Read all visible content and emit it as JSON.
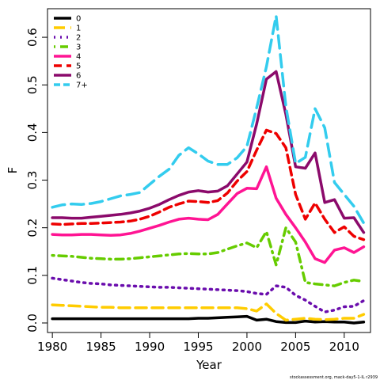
{
  "chart_data": {
    "type": "line",
    "title": "",
    "xlabel": "Year",
    "ylabel": "F",
    "xlim": [
      1979.5,
      2012.7
    ],
    "ylim": [
      -0.02,
      0.66
    ],
    "grid": false,
    "legend_position": "top-left",
    "x_ticks": [
      1980,
      1985,
      1990,
      1995,
      2000,
      2005,
      2010
    ],
    "y_ticks": [
      0.0,
      0.1,
      0.2,
      0.3,
      0.4,
      0.5,
      0.6
    ],
    "y_tick_labels": [
      "0.0",
      "0.1",
      "0.2",
      "0.3",
      "0.4",
      "0.5",
      "0.6"
    ],
    "x": [
      1980,
      1981,
      1982,
      1983,
      1984,
      1985,
      1986,
      1987,
      1988,
      1989,
      1990,
      1991,
      1992,
      1993,
      1994,
      1995,
      1996,
      1997,
      1998,
      1999,
      2000,
      2001,
      2002,
      2003,
      2004,
      2005,
      2006,
      2007,
      2008,
      2009,
      2010,
      2011,
      2012
    ],
    "series": [
      {
        "name": "0",
        "color": "#000000",
        "dash": "solid",
        "values": [
          0.009,
          0.009,
          0.009,
          0.009,
          0.009,
          0.009,
          0.009,
          0.009,
          0.009,
          0.009,
          0.009,
          0.009,
          0.009,
          0.009,
          0.009,
          0.01,
          0.01,
          0.011,
          0.012,
          0.013,
          0.014,
          0.006,
          0.008,
          0.003,
          0.001,
          0.001,
          0.004,
          0.002,
          0.003,
          0.002,
          0.002,
          0.0,
          0.002
        ]
      },
      {
        "name": "1",
        "color": "#FFCC00",
        "dash": "long",
        "values": [
          0.038,
          0.037,
          0.036,
          0.035,
          0.034,
          0.033,
          0.033,
          0.032,
          0.032,
          0.032,
          0.032,
          0.032,
          0.032,
          0.032,
          0.032,
          0.032,
          0.032,
          0.032,
          0.032,
          0.032,
          0.03,
          0.025,
          0.04,
          0.02,
          0.006,
          0.008,
          0.01,
          0.008,
          0.007,
          0.008,
          0.01,
          0.01,
          0.018
        ]
      },
      {
        "name": "2",
        "color": "#6A0DAD",
        "dash": "dotted",
        "values": [
          0.094,
          0.091,
          0.088,
          0.085,
          0.083,
          0.082,
          0.08,
          0.079,
          0.078,
          0.077,
          0.076,
          0.075,
          0.075,
          0.074,
          0.073,
          0.072,
          0.071,
          0.07,
          0.069,
          0.068,
          0.066,
          0.062,
          0.06,
          0.078,
          0.075,
          0.058,
          0.048,
          0.035,
          0.023,
          0.027,
          0.034,
          0.035,
          0.047
        ]
      },
      {
        "name": "3",
        "color": "#66CC00",
        "dash": "dotdash",
        "values": [
          0.142,
          0.141,
          0.14,
          0.138,
          0.136,
          0.135,
          0.134,
          0.134,
          0.135,
          0.137,
          0.139,
          0.141,
          0.143,
          0.145,
          0.146,
          0.145,
          0.145,
          0.148,
          0.155,
          0.162,
          0.168,
          0.158,
          0.192,
          0.122,
          0.2,
          0.17,
          0.085,
          0.082,
          0.08,
          0.078,
          0.085,
          0.09,
          0.087
        ]
      },
      {
        "name": "4",
        "color": "#FF1493",
        "dash": "solid",
        "values": [
          0.186,
          0.185,
          0.185,
          0.186,
          0.186,
          0.185,
          0.184,
          0.185,
          0.188,
          0.193,
          0.199,
          0.205,
          0.212,
          0.218,
          0.22,
          0.218,
          0.217,
          0.228,
          0.25,
          0.272,
          0.283,
          0.282,
          0.328,
          0.262,
          0.228,
          0.2,
          0.17,
          0.135,
          0.127,
          0.153,
          0.158,
          0.148,
          0.16
        ]
      },
      {
        "name": "5",
        "color": "#EE0000",
        "dash": "dashed",
        "values": [
          0.208,
          0.207,
          0.208,
          0.209,
          0.209,
          0.21,
          0.211,
          0.212,
          0.214,
          0.218,
          0.224,
          0.233,
          0.243,
          0.25,
          0.256,
          0.255,
          0.253,
          0.257,
          0.273,
          0.298,
          0.318,
          0.363,
          0.405,
          0.398,
          0.368,
          0.27,
          0.218,
          0.252,
          0.218,
          0.19,
          0.202,
          0.182,
          0.175
        ]
      },
      {
        "name": "6",
        "color": "#8B0A6B",
        "dash": "solid",
        "values": [
          0.221,
          0.221,
          0.22,
          0.22,
          0.222,
          0.224,
          0.226,
          0.228,
          0.231,
          0.235,
          0.241,
          0.249,
          0.259,
          0.268,
          0.275,
          0.278,
          0.275,
          0.277,
          0.288,
          0.313,
          0.338,
          0.418,
          0.512,
          0.528,
          0.438,
          0.328,
          0.325,
          0.357,
          0.253,
          0.259,
          0.22,
          0.221,
          0.19
        ]
      },
      {
        "name": "7+",
        "color": "#33CCEE",
        "dash": "longdash",
        "values": [
          0.243,
          0.248,
          0.25,
          0.249,
          0.251,
          0.255,
          0.261,
          0.267,
          0.27,
          0.274,
          0.291,
          0.308,
          0.323,
          0.352,
          0.368,
          0.355,
          0.34,
          0.333,
          0.333,
          0.347,
          0.371,
          0.452,
          0.538,
          0.645,
          0.455,
          0.335,
          0.348,
          0.45,
          0.41,
          0.295,
          0.27,
          0.245,
          0.21
        ]
      }
    ]
  },
  "footer_note": "stockassessment.org, mack-day5-1-IL r2939"
}
